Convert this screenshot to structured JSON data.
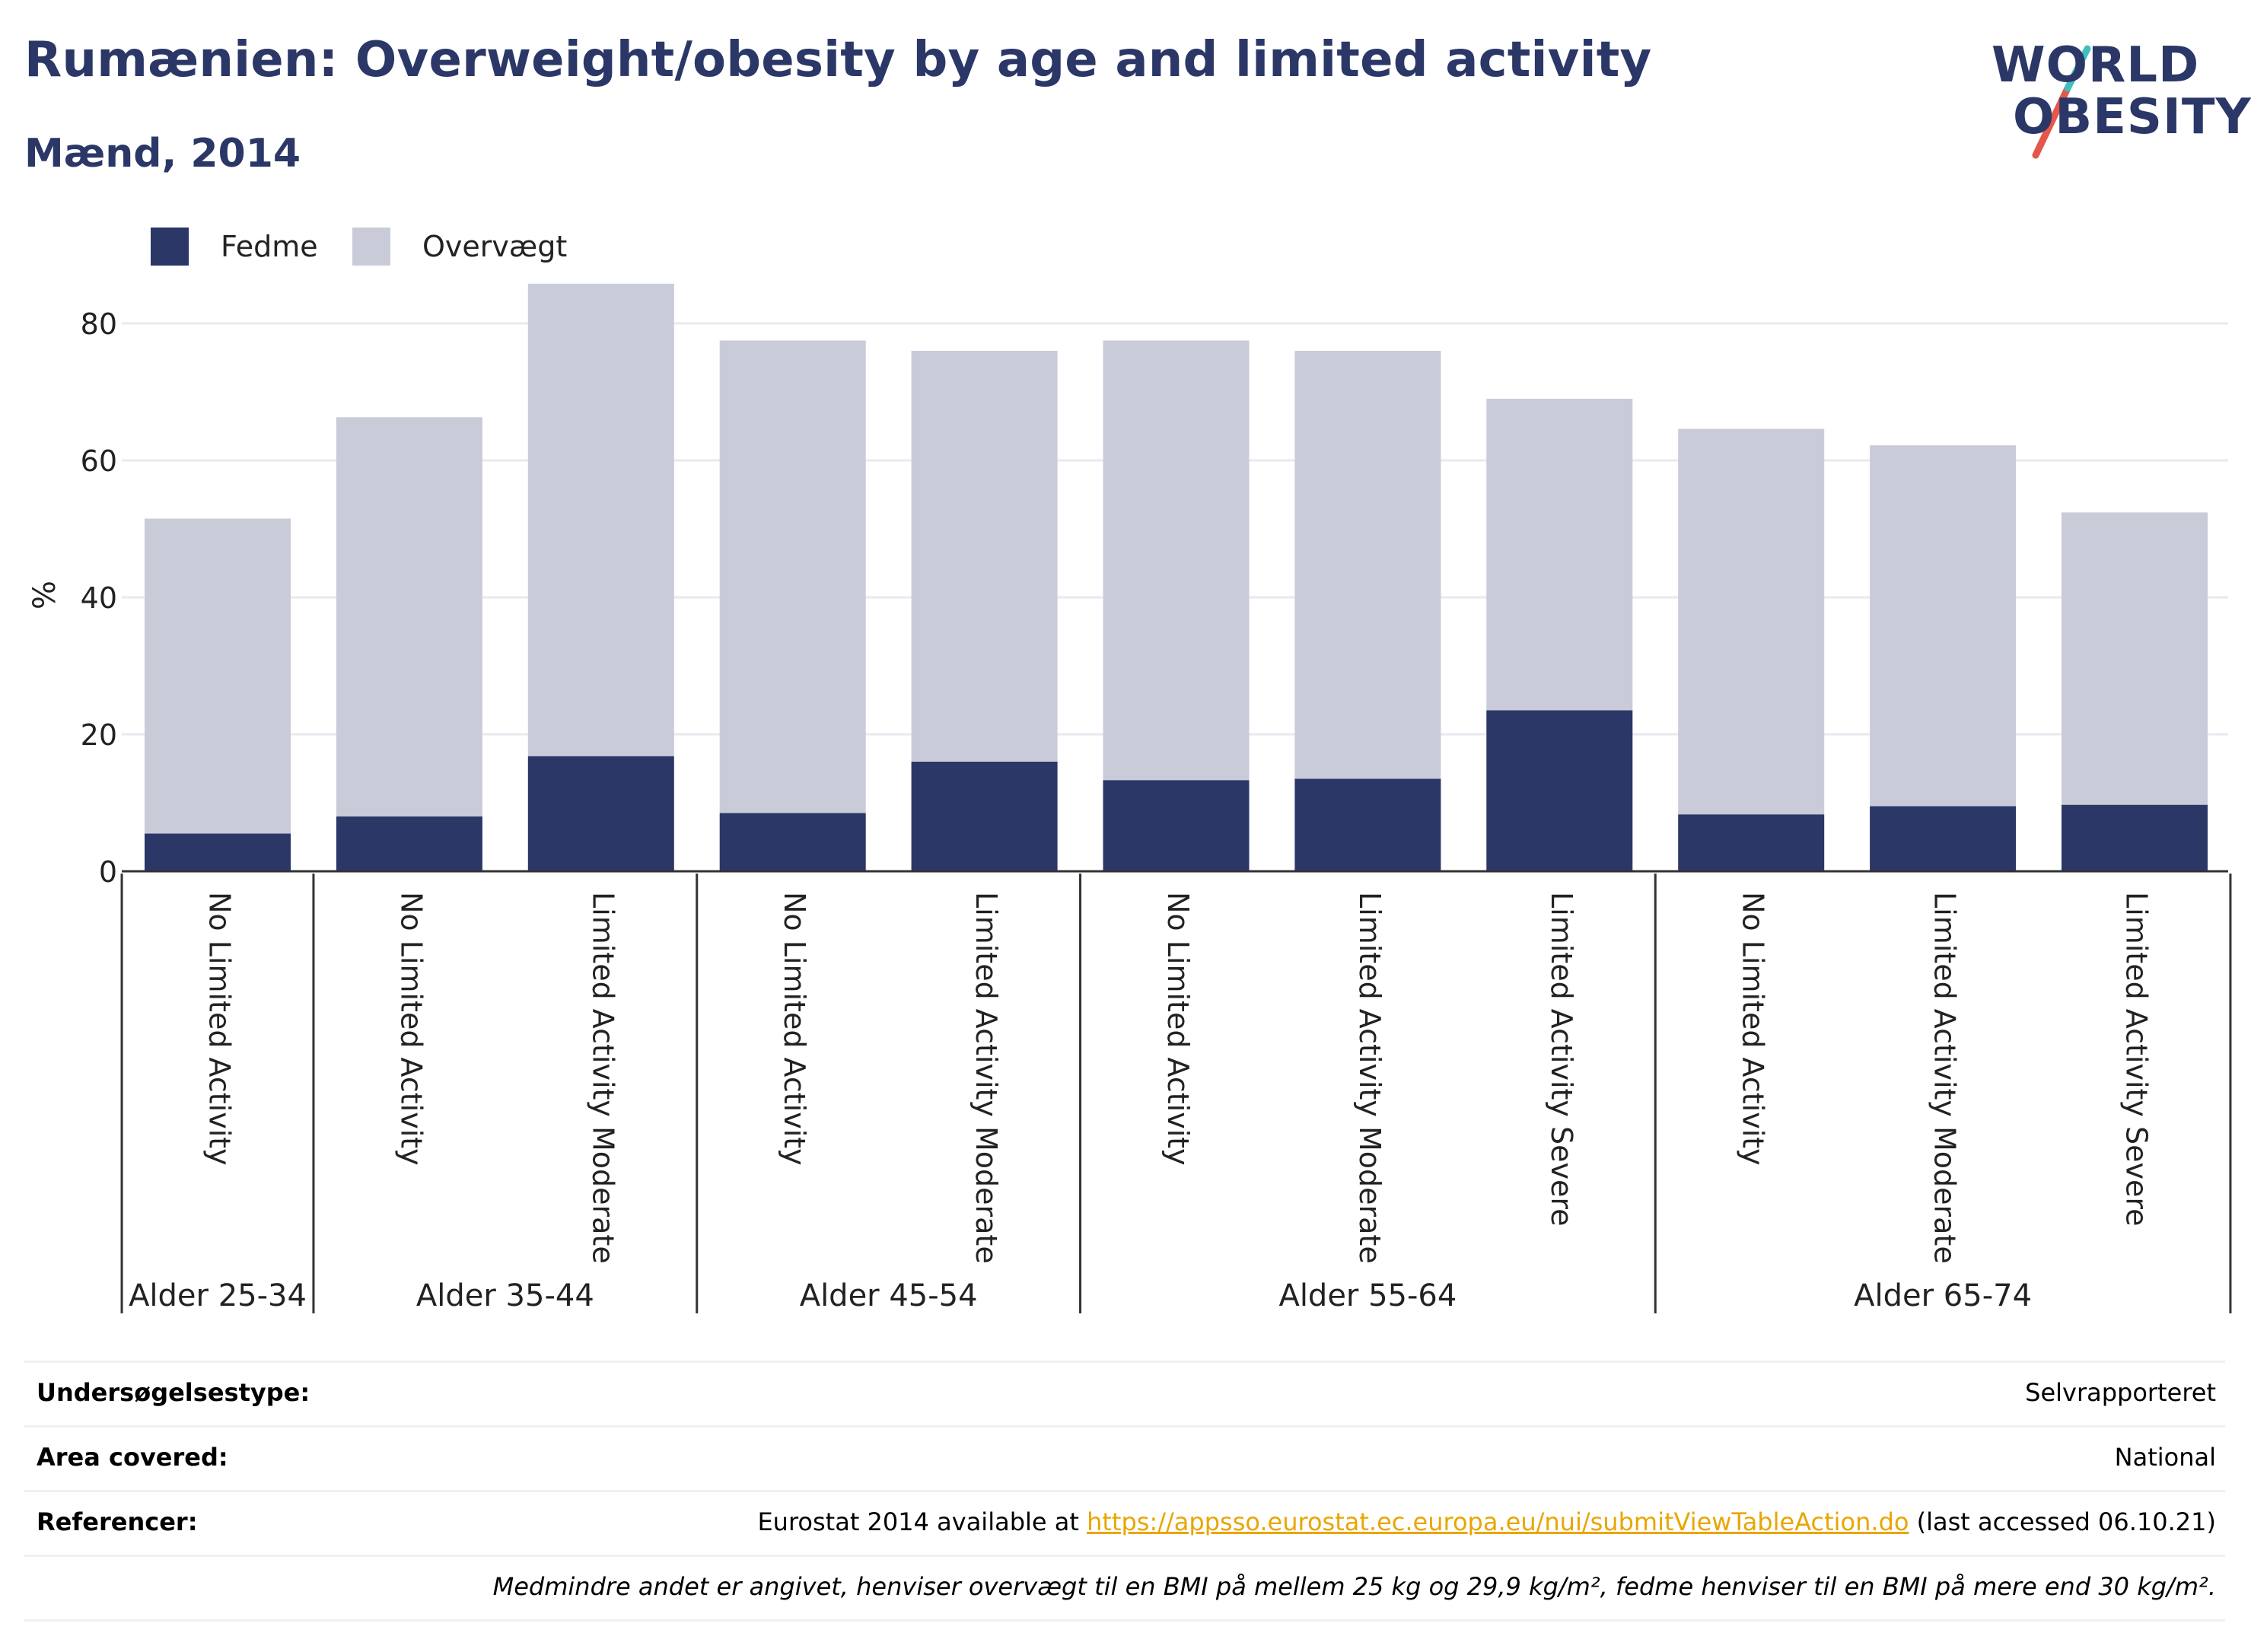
{
  "header": {
    "title": "Rumænien: Overweight/obesity by age and limited activity",
    "subtitle": "Mænd, 2014"
  },
  "logo": {
    "line1": "WORLD",
    "line2": "OBESITY"
  },
  "colors": {
    "obesity": "#2b3767",
    "overweight": "#c9ccd8",
    "accent_red": "#e4574a",
    "accent_teal": "#3fbfbf"
  },
  "chart_data": {
    "type": "bar",
    "stacked": true,
    "ylabel": "%",
    "ylim": [
      0,
      90
    ],
    "yticks": [
      0,
      20,
      40,
      60,
      80
    ],
    "grid": true,
    "legend_position": "top-left",
    "categories": [
      "No Limited Activity",
      "No Limited Activity",
      "Limited Activity Moderate",
      "No Limited Activity",
      "Limited Activity Moderate",
      "No Limited Activity",
      "Limited Activity Moderate",
      "Limited Activity Severe",
      "No Limited Activity",
      "Limited Activity Moderate",
      "Limited Activity Severe"
    ],
    "groups": [
      {
        "label": "Alder 25-34",
        "count": 1
      },
      {
        "label": "Alder 35-44",
        "count": 2
      },
      {
        "label": "Alder 45-54",
        "count": 2
      },
      {
        "label": "Alder 55-64",
        "count": 3
      },
      {
        "label": "Alder 65-74",
        "count": 3
      }
    ],
    "series": [
      {
        "name": "Fedme",
        "values": [
          5.5,
          8.0,
          16.8,
          8.5,
          16.0,
          13.3,
          13.5,
          23.5,
          8.3,
          9.5,
          9.7
        ]
      },
      {
        "name": "Overvægt",
        "values": [
          46.0,
          58.3,
          69.0,
          69.0,
          60.0,
          64.2,
          62.5,
          45.5,
          56.3,
          52.7,
          42.7
        ]
      }
    ]
  },
  "meta": {
    "survey_type_label": "Undersøgelsestype:",
    "survey_type_value": "Selvrapporteret",
    "area_label": "Area covered:",
    "area_value": "National",
    "refs_label": "Referencer:",
    "refs_prefix": "Eurostat 2014 available at ",
    "refs_link": "https://appsso.eurostat.ec.europa.eu/nui/submitViewTableAction.do",
    "refs_suffix": " (last accessed 06.10.21)",
    "note": "Medmindre andet er angivet, henviser overvægt til en BMI på mellem 25 kg og 29,9 kg/m², fedme henviser til en BMI på mere end 30 kg/m²."
  }
}
